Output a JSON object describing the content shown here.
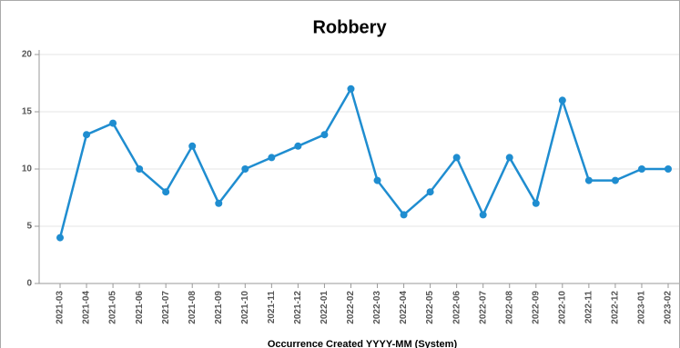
{
  "chart_data": {
    "type": "line",
    "title": "Robbery",
    "x_label": "Occurrence Created YYYY-MM (System)",
    "categories": [
      "2021-03",
      "2021-04",
      "2021-05",
      "2021-06",
      "2021-07",
      "2021-08",
      "2021-09",
      "2021-10",
      "2021-11",
      "2021-12",
      "2022-01",
      "2022-02",
      "2022-03",
      "2022-04",
      "2022-05",
      "2022-06",
      "2022-07",
      "2022-08",
      "2022-09",
      "2022-10",
      "2022-11",
      "2022-12",
      "2023-01",
      "2023-02"
    ],
    "series": [
      {
        "name": "Robbery",
        "color": "#1f8dd0",
        "values": [
          4,
          13,
          14,
          10,
          8,
          12,
          7,
          10,
          11,
          12,
          13,
          17,
          9,
          6,
          8,
          11,
          6,
          11,
          7,
          16,
          9,
          9,
          10,
          10
        ]
      }
    ],
    "ylim": [
      0,
      20
    ],
    "yticks": [
      0,
      5,
      10,
      15,
      20
    ],
    "grid": true
  }
}
